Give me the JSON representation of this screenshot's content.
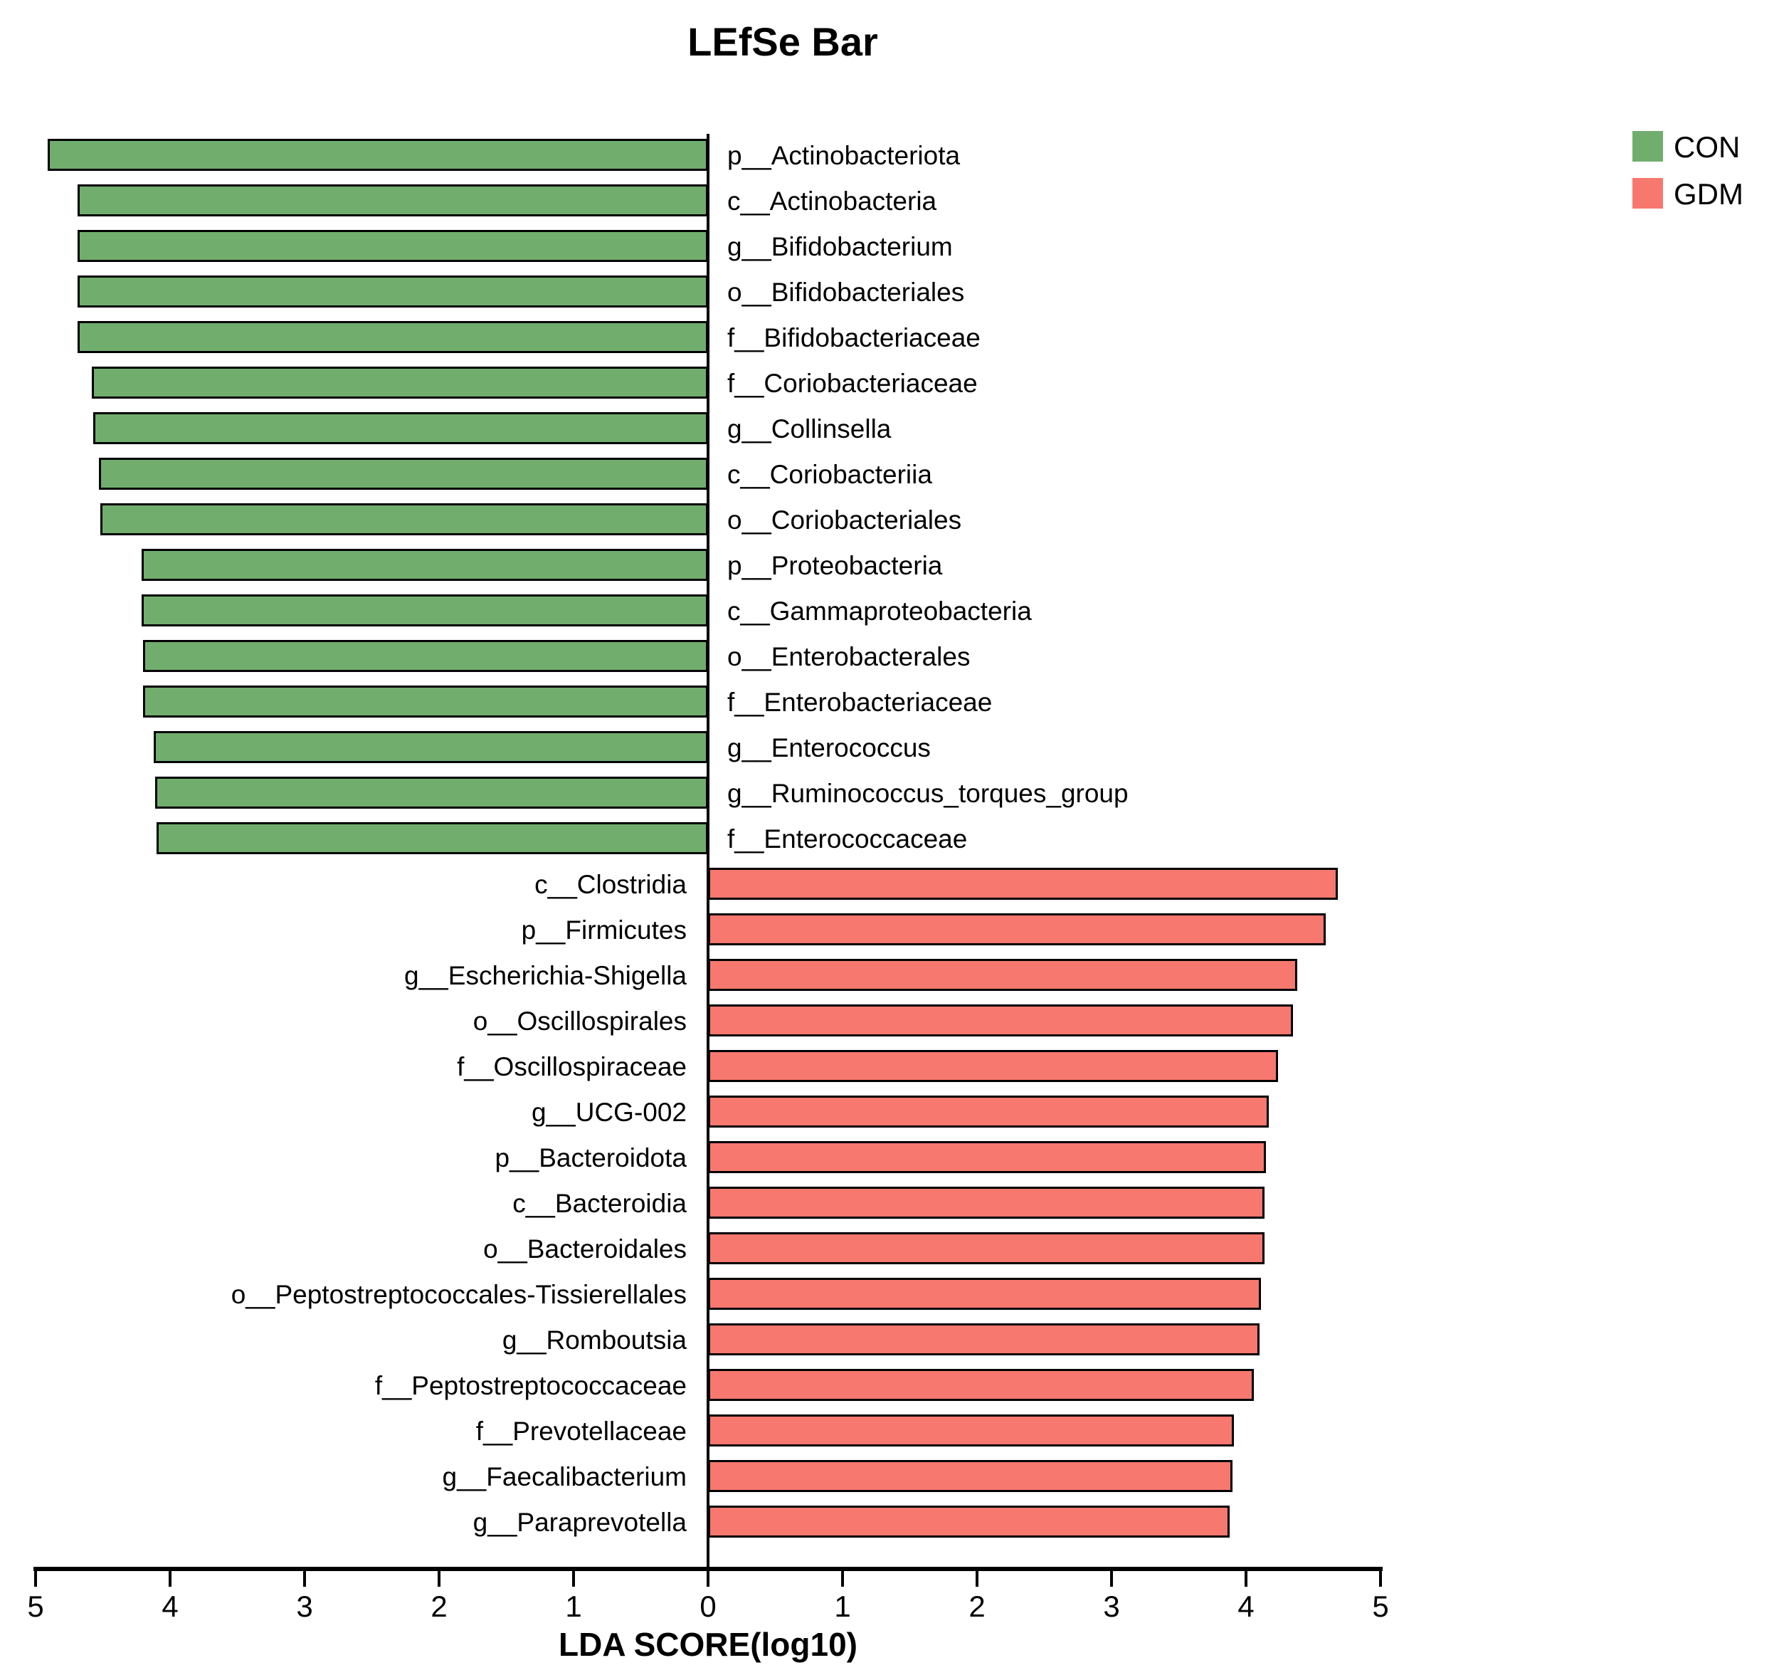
{
  "chart_data": {
    "type": "bar",
    "orientation": "horizontal-diverging",
    "title": "LEfSe Bar",
    "xlabel": "LDA SCORE(log10)",
    "grid": false,
    "legend_position": "top-right",
    "colors": {
      "con_green": "#71AE6E",
      "gdm_red": "#F7786E",
      "axis_black": "#000000"
    },
    "axis": {
      "range_abs": [
        0,
        5
      ],
      "ticks": [
        {
          "label": "5",
          "value": -5
        },
        {
          "label": "4",
          "value": -4
        },
        {
          "label": "3",
          "value": -3
        },
        {
          "label": "2",
          "value": -2
        },
        {
          "label": "1",
          "value": -1
        },
        {
          "label": "0",
          "value": 0
        },
        {
          "label": "1",
          "value": 1
        },
        {
          "label": "2",
          "value": 2
        },
        {
          "label": "3",
          "value": 3
        },
        {
          "label": "4",
          "value": 4
        },
        {
          "label": "5",
          "value": 5
        }
      ]
    },
    "legend": [
      {
        "name": "CON",
        "color": "#71AE6E"
      },
      {
        "name": "GDM",
        "color": "#F7786E"
      }
    ],
    "series": [
      {
        "name": "CON",
        "direction": "left",
        "color": "#71AE6E",
        "items": [
          {
            "label": "p__Actinobacteriota",
            "value": 4.91
          },
          {
            "label": "c__Actinobacteria",
            "value": 4.69
          },
          {
            "label": "g__Bifidobacterium",
            "value": 4.69
          },
          {
            "label": "o__Bifidobacteriales",
            "value": 4.69
          },
          {
            "label": "f__Bifidobacteriaceae",
            "value": 4.69
          },
          {
            "label": "f__Coriobacteriaceae",
            "value": 4.58
          },
          {
            "label": "g__Collinsella",
            "value": 4.57
          },
          {
            "label": "c__Coriobacteriia",
            "value": 4.53
          },
          {
            "label": "o__Coriobacteriales",
            "value": 4.52
          },
          {
            "label": "p__Proteobacteria",
            "value": 4.21
          },
          {
            "label": "c__Gammaproteobacteria",
            "value": 4.21
          },
          {
            "label": "o__Enterobacterales",
            "value": 4.2
          },
          {
            "label": "f__Enterobacteriaceae",
            "value": 4.2
          },
          {
            "label": "g__Enterococcus",
            "value": 4.12
          },
          {
            "label": "g__Ruminococcus_torques_group",
            "value": 4.11
          },
          {
            "label": "f__Enterococcaceae",
            "value": 4.1
          }
        ]
      },
      {
        "name": "GDM",
        "direction": "right",
        "color": "#F7786E",
        "items": [
          {
            "label": "c__Clostridia",
            "value": 4.68
          },
          {
            "label": "p__Firmicutes",
            "value": 4.59
          },
          {
            "label": "g__Escherichia-Shigella",
            "value": 4.38
          },
          {
            "label": "o__Oscillospirales",
            "value": 4.35
          },
          {
            "label": "f__Oscillospiraceae",
            "value": 4.24
          },
          {
            "label": "g__UCG-002",
            "value": 4.17
          },
          {
            "label": "p__Bacteroidota",
            "value": 4.15
          },
          {
            "label": "c__Bacteroidia",
            "value": 4.14
          },
          {
            "label": "o__Bacteroidales",
            "value": 4.14
          },
          {
            "label": "o__Peptostreptococcales-Tissierellales",
            "value": 4.11
          },
          {
            "label": "g__Romboutsia",
            "value": 4.1
          },
          {
            "label": "f__Peptostreptococcaceae",
            "value": 4.06
          },
          {
            "label": "f__Prevotellaceae",
            "value": 3.91
          },
          {
            "label": "g__Faecalibacterium",
            "value": 3.9
          },
          {
            "label": "g__Paraprevotella",
            "value": 3.88
          }
        ]
      }
    ]
  }
}
